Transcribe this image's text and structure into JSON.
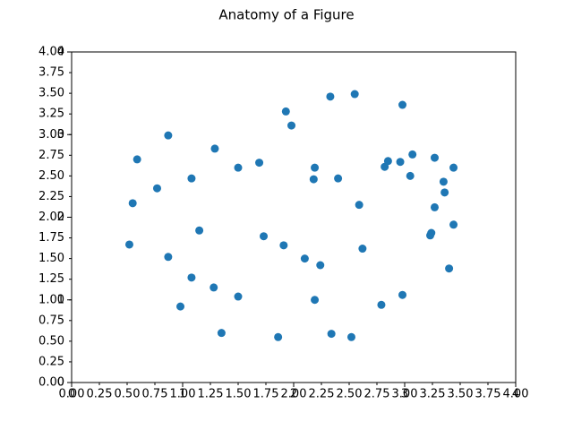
{
  "chart_data": {
    "type": "scatter",
    "title": "Anatomy of a Figure",
    "color": "#1f77b4",
    "x": [
      0.52,
      0.55,
      0.59,
      0.77,
      0.87,
      0.87,
      0.98,
      1.08,
      1.08,
      1.15,
      1.28,
      1.29,
      1.35,
      1.5,
      1.5,
      1.69,
      1.73,
      1.86,
      1.91,
      1.93,
      1.98,
      2.1,
      2.18,
      2.19,
      2.19,
      2.24,
      2.33,
      2.34,
      2.4,
      2.52,
      2.55,
      2.59,
      2.62,
      2.79,
      2.82,
      2.85,
      2.96,
      2.98,
      2.98,
      3.05,
      3.07,
      3.23,
      3.24,
      3.27,
      3.27,
      3.35,
      3.36,
      3.4,
      3.44,
      3.44
    ],
    "values": [
      1.67,
      2.17,
      2.7,
      2.35,
      2.99,
      1.52,
      0.92,
      2.47,
      1.27,
      1.84,
      1.15,
      2.83,
      0.6,
      2.6,
      1.04,
      2.66,
      1.77,
      0.55,
      1.66,
      3.28,
      3.11,
      1.5,
      2.46,
      2.6,
      1.0,
      1.42,
      3.46,
      0.59,
      2.47,
      0.55,
      3.49,
      2.15,
      1.62,
      0.94,
      2.61,
      2.68,
      2.67,
      3.36,
      1.06,
      2.5,
      2.76,
      1.78,
      1.81,
      2.72,
      2.12,
      2.43,
      2.3,
      1.38,
      1.91,
      2.6
    ],
    "xlim": [
      0,
      4
    ],
    "ylim": [
      0,
      4
    ],
    "xticks": [
      0,
      1,
      2,
      3,
      4
    ],
    "yticks": [
      0,
      1,
      2,
      3,
      4
    ],
    "x_minor_ticks": [
      {
        "value": 0,
        "label": "0.00"
      },
      {
        "value": 0.25,
        "label": "0.25"
      },
      {
        "value": 0.5,
        "label": "0.50"
      },
      {
        "value": 0.75,
        "label": "0.75"
      },
      {
        "value": 1,
        "label": "1.00"
      },
      {
        "value": 1.25,
        "label": "1.25"
      },
      {
        "value": 1.5,
        "label": "1.50"
      },
      {
        "value": 1.75,
        "label": "1.75"
      },
      {
        "value": 2,
        "label": "2.00"
      },
      {
        "value": 2.25,
        "label": "2.25"
      },
      {
        "value": 2.5,
        "label": "2.50"
      },
      {
        "value": 2.75,
        "label": "2.75"
      },
      {
        "value": 3,
        "label": "3.00"
      },
      {
        "value": 3.25,
        "label": "3.25"
      },
      {
        "value": 3.5,
        "label": "3.50"
      },
      {
        "value": 3.75,
        "label": "3.75"
      },
      {
        "value": 4,
        "label": "4.00"
      }
    ],
    "y_minor_ticks": [
      {
        "value": 0,
        "label": "0.00"
      },
      {
        "value": 0.25,
        "label": "0.25"
      },
      {
        "value": 0.5,
        "label": "0.50"
      },
      {
        "value": 0.75,
        "label": "0.75"
      },
      {
        "value": 1,
        "label": "1.00"
      },
      {
        "value": 1.25,
        "label": "1.25"
      },
      {
        "value": 1.5,
        "label": "1.50"
      },
      {
        "value": 1.75,
        "label": "1.75"
      },
      {
        "value": 2,
        "label": "2.00"
      },
      {
        "value": 2.25,
        "label": "2.25"
      },
      {
        "value": 2.5,
        "label": "2.50"
      },
      {
        "value": 2.75,
        "label": "2.75"
      },
      {
        "value": 3,
        "label": "3.00"
      },
      {
        "value": 3.25,
        "label": "3.25"
      },
      {
        "value": 3.5,
        "label": "3.50"
      },
      {
        "value": 3.75,
        "label": "3.75"
      },
      {
        "value": 4,
        "label": "4.00"
      }
    ]
  }
}
